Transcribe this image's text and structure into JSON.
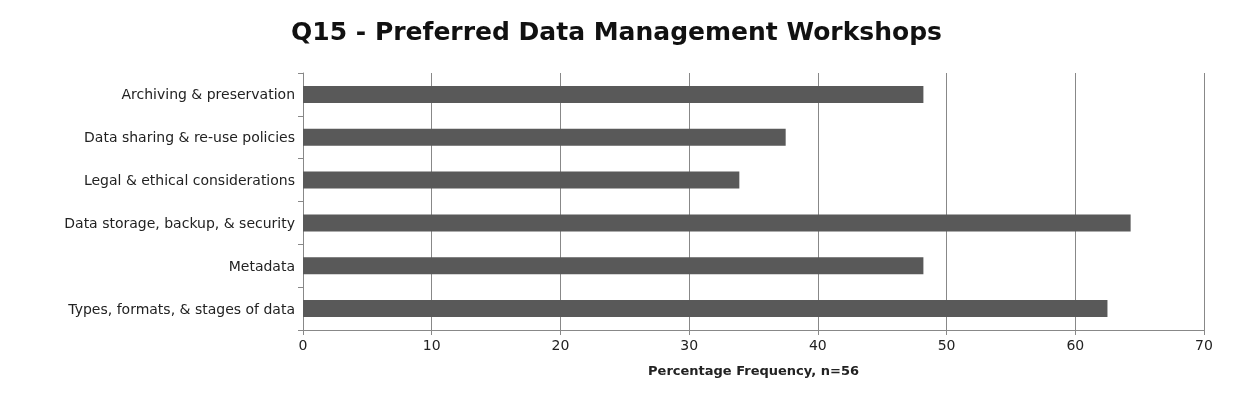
{
  "chart_data": {
    "type": "bar",
    "orientation": "horizontal",
    "title": "Q15 - Preferred Data Management Workshops",
    "xlabel": "Percentage Frequency, n=56",
    "categories": [
      "Archiving & preservation",
      "Data sharing & re-use policies",
      "Legal & ethical considerations",
      "Data storage, backup, & security",
      "Metadata",
      "Types, formats, & stages of data"
    ],
    "values": [
      48.2,
      37.5,
      33.9,
      64.3,
      48.2,
      62.5
    ],
    "color": "#595959",
    "xlim": [
      0,
      70
    ],
    "xticks": [
      0,
      10,
      20,
      30,
      40,
      50,
      60,
      70
    ],
    "grid": "x"
  }
}
